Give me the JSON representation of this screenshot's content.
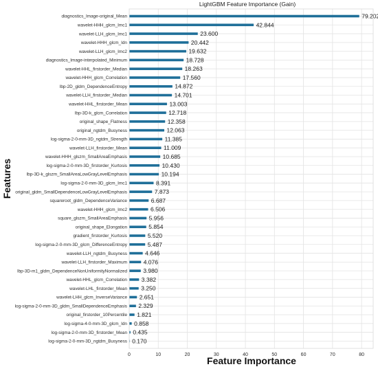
{
  "chart_data": {
    "type": "bar",
    "orientation": "horizontal",
    "title": "LightGBM Feature Importance (Gain)",
    "xlabel": "Feature Importance",
    "ylabel": "Features",
    "xlim": [
      0,
      84
    ],
    "xticks": [
      0,
      10,
      20,
      30,
      40,
      50,
      60,
      70,
      80
    ],
    "grid": true,
    "legend": "none",
    "bar_color": "#1f6f99",
    "categories": [
      "diagnostics_Image-original_Mean",
      "wavelet-HHH_glcm_Imc1",
      "wavelet-LLH_glcm_Imc1",
      "wavelet-HHH_glcm_Idn",
      "wavelet-LLH_glcm_Imc2",
      "diagnostics_Image-interpolated_Minimum",
      "wavelet-HHL_firstorder_Median",
      "wavelet-HHH_glcm_Correlation",
      "lbp-2D_gldm_DependenceEntropy",
      "wavelet-LLH_firstorder_Median",
      "wavelet-HHL_firstorder_Mean",
      "lbp-3D-k_glcm_Correlation",
      "original_shape_Flatness",
      "original_ngtdm_Busyness",
      "log-sigma-2-0-mm-3D_ngtdm_Strength",
      "wavelet-LLH_firstorder_Mean",
      "wavelet-HHH_glszm_SmallAreaEmphasis",
      "log-sigma-2-0-mm-3D_firstorder_Kurtosis",
      "lbp-3D-k_glszm_SmallAreaLowGrayLevelEmphasis",
      "log-sigma-2-0-mm-3D_glcm_Imc1",
      "original_gldm_SmallDependenceLowGrayLevelEmphasis",
      "squareroot_gldm_DependenceVariance",
      "wavelet-HHH_glcm_Imc2",
      "square_glszm_SmallAreaEmphasis",
      "original_shape_Elongation",
      "gradient_firstorder_Kurtosis",
      "log-sigma-2-0-mm-3D_glcm_DifferenceEntropy",
      "wavelet-LLH_ngtdm_Busyness",
      "wavelet-LLH_firstorder_Maximum",
      "lbp-3D-m1_gldm_DependenceNonUniformityNormalized",
      "wavelet-HHL_glcm_Correlation",
      "wavelet-LHL_firstorder_Mean",
      "wavelet-LHH_glcm_InverseVariance",
      "log-sigma-2-0-mm-3D_gldm_SmallDependenceEmphasis",
      "original_firstorder_10Percentile",
      "log-sigma-4-0-mm-3D_glcm_Idn",
      "log-sigma-2-0-mm-3D_firstorder_Mean",
      "log-sigma-2-0-mm-3D_ngtdm_Busyness"
    ],
    "values": [
      79.202,
      42.844,
      23.6,
      20.442,
      19.632,
      18.728,
      18.263,
      17.56,
      14.872,
      14.701,
      13.003,
      12.718,
      12.358,
      12.063,
      11.385,
      11.009,
      10.685,
      10.43,
      10.194,
      8.391,
      7.873,
      6.687,
      6.506,
      5.956,
      5.854,
      5.52,
      5.487,
      4.646,
      4.076,
      3.98,
      3.382,
      3.25,
      2.651,
      2.329,
      1.821,
      0.858,
      0.435,
      0.17
    ],
    "value_labels": [
      "79.202",
      "42.844",
      "23.600",
      "20.442",
      "19.632",
      "18.728",
      "18.263",
      "17.560",
      "14.872",
      "14.701",
      "13.003",
      "12.718",
      "12.358",
      "12.063",
      "11.385",
      "11.009",
      "10.685",
      "10.430",
      "10.194",
      "8.391",
      "7.873",
      "6.687",
      "6.506",
      "5.956",
      "5.854",
      "5.520",
      "5.487",
      "4.646",
      "4.076",
      "3.980",
      "3.382",
      "3.250",
      "2.651",
      "2.329",
      "1.821",
      "0.858",
      "0.435",
      "0.170"
    ]
  }
}
